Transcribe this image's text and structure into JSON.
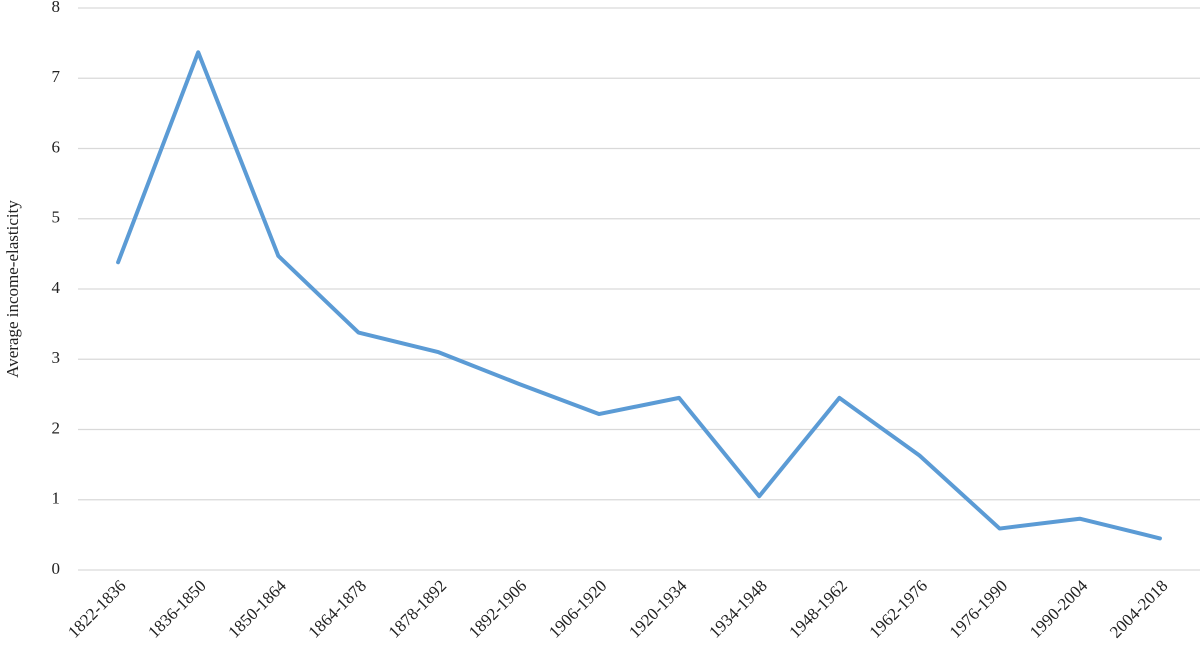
{
  "chart_data": {
    "type": "line",
    "y_label": "Average income-elasticity",
    "categories": [
      "1822-1836",
      "1836-1850",
      "1850-1864",
      "1864-1878",
      "1878-1892",
      "1892-1906",
      "1906-1920",
      "1920-1934",
      "1934-1948",
      "1948-1962",
      "1962-1976",
      "1976-1990",
      "1990-2004",
      "2004-2018"
    ],
    "values": [
      4.38,
      7.37,
      4.47,
      3.38,
      3.1,
      2.65,
      2.22,
      2.45,
      1.05,
      2.45,
      1.63,
      0.59,
      0.73,
      0.45
    ],
    "color": "#5b9bd5",
    "ylim": [
      0,
      8
    ],
    "yticks": [
      0,
      1,
      2,
      3,
      4,
      5,
      6,
      7,
      8
    ],
    "grid": true
  }
}
